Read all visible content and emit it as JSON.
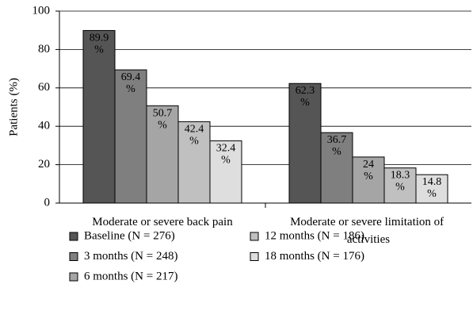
{
  "chart_data": {
    "type": "bar",
    "ylabel": "Patients (%)",
    "categories": [
      "Moderate or severe back pain",
      "Moderate or severe limitation of activities"
    ],
    "series": [
      {
        "name": "Baseline (N = 276)",
        "color": "#555555",
        "values": [
          89.9,
          62.3
        ],
        "value_labels": [
          "89.9%",
          "62.3%"
        ]
      },
      {
        "name": "3 months (N = 248)",
        "color": "#7f7f7f",
        "values": [
          69.4,
          36.7
        ],
        "value_labels": [
          "69.4%",
          "36.7%"
        ]
      },
      {
        "name": "6 months (N = 217)",
        "color": "#a5a5a5",
        "values": [
          50.7,
          24
        ],
        "value_labels": [
          "50.7%",
          "24%"
        ]
      },
      {
        "name": "12 months (N = 186)",
        "color": "#c0c0c0",
        "values": [
          42.4,
          18.3
        ],
        "value_labels": [
          "42.4%",
          "18.3%"
        ]
      },
      {
        "name": "18 months (N = 176)",
        "color": "#dedede",
        "values": [
          32.4,
          14.8
        ],
        "value_labels": [
          "32.4%",
          "14.8%"
        ]
      }
    ],
    "ylim": [
      0,
      100
    ],
    "yticks": [
      0,
      20,
      40,
      60,
      80,
      100
    ],
    "grid": true,
    "legend": "bottom"
  }
}
